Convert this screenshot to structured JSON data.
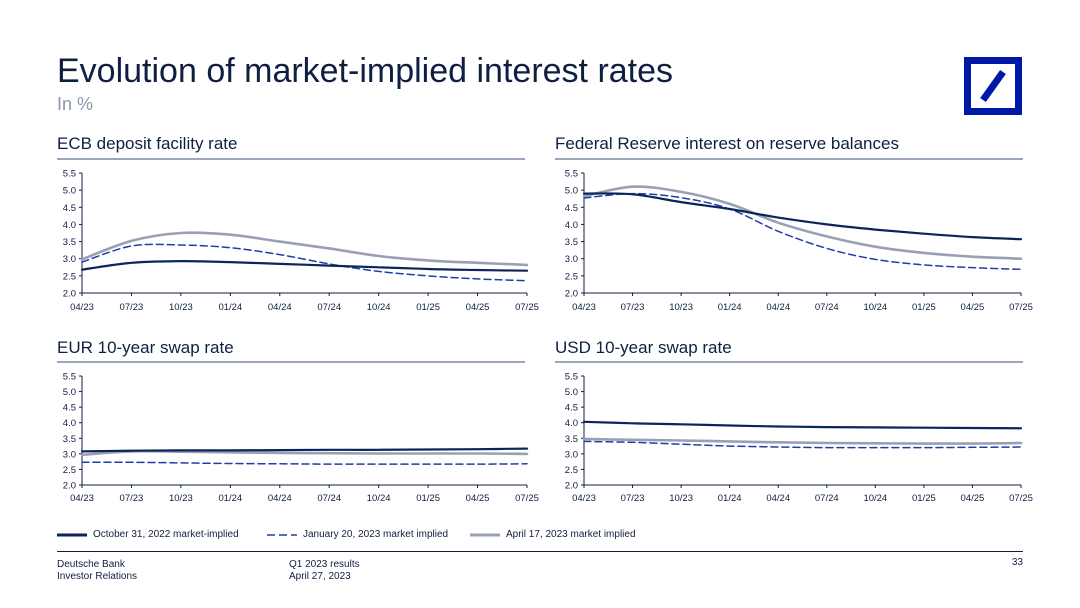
{
  "header": {
    "title": "Evolution of market-implied interest rates",
    "subtitle": "In %"
  },
  "colors": {
    "oct31": "#0b2559",
    "jan20": "#1f3fa6",
    "apr17": "#98a1b3",
    "logo": "#0018a8",
    "rule": "#9aa6bd"
  },
  "legend": [
    {
      "label": "October 31, 2022 market-implied",
      "style": "solid-dark"
    },
    {
      "label": "January 20, 2023 market implied",
      "style": "dashed-blue"
    },
    {
      "label": "April 17, 2023 market implied",
      "style": "solid-grey"
    }
  ],
  "chart_data": [
    {
      "type": "line",
      "title": "ECB deposit facility rate",
      "x": [
        "04/23",
        "07/23",
        "10/23",
        "01/24",
        "04/24",
        "07/24",
        "10/24",
        "01/25",
        "04/25",
        "07/25"
      ],
      "ylim": [
        2.0,
        5.5
      ],
      "yticks": [
        "2.0",
        "2.5",
        "3.0",
        "3.5",
        "4.0",
        "4.5",
        "5.0",
        "5.5"
      ],
      "series": [
        {
          "name": "October 31, 2022 market-implied",
          "values": [
            2.68,
            2.88,
            2.93,
            2.9,
            2.85,
            2.8,
            2.75,
            2.7,
            2.67,
            2.65
          ]
        },
        {
          "name": "January 20, 2023 market implied",
          "values": [
            2.9,
            3.37,
            3.4,
            3.32,
            3.12,
            2.85,
            2.63,
            2.5,
            2.41,
            2.36
          ]
        },
        {
          "name": "April 17, 2023 market implied",
          "values": [
            2.98,
            3.52,
            3.75,
            3.7,
            3.5,
            3.3,
            3.08,
            2.95,
            2.88,
            2.82
          ]
        }
      ]
    },
    {
      "type": "line",
      "title": "Federal Reserve interest on reserve balances",
      "x": [
        "04/23",
        "07/23",
        "10/23",
        "01/24",
        "04/24",
        "07/24",
        "10/24",
        "01/25",
        "04/25",
        "07/25"
      ],
      "ylim": [
        2.0,
        5.5
      ],
      "yticks": [
        "2.0",
        "2.5",
        "3.0",
        "3.5",
        "4.0",
        "4.5",
        "5.0",
        "5.5"
      ],
      "series": [
        {
          "name": "October 31, 2022 market-implied",
          "values": [
            4.9,
            4.88,
            4.65,
            4.45,
            4.2,
            4.0,
            3.85,
            3.73,
            3.63,
            3.57
          ]
        },
        {
          "name": "January 20, 2023 market implied",
          "values": [
            4.77,
            4.9,
            4.78,
            4.45,
            3.8,
            3.3,
            2.98,
            2.82,
            2.74,
            2.69
          ]
        },
        {
          "name": "April 17, 2023 market implied",
          "values": [
            4.82,
            5.1,
            4.95,
            4.6,
            4.05,
            3.65,
            3.35,
            3.17,
            3.06,
            3.0
          ]
        }
      ]
    },
    {
      "type": "line",
      "title": "EUR 10-year swap rate",
      "x": [
        "04/23",
        "07/23",
        "10/23",
        "01/24",
        "04/24",
        "07/24",
        "10/24",
        "01/25",
        "04/25",
        "07/25"
      ],
      "ylim": [
        2.0,
        5.5
      ],
      "yticks": [
        "2.0",
        "2.5",
        "3.0",
        "3.5",
        "4.0",
        "4.5",
        "5.0",
        "5.5"
      ],
      "series": [
        {
          "name": "October 31, 2022 market-implied",
          "values": [
            3.08,
            3.1,
            3.11,
            3.11,
            3.12,
            3.13,
            3.13,
            3.14,
            3.15,
            3.17
          ]
        },
        {
          "name": "January 20, 2023 market implied",
          "values": [
            2.73,
            2.73,
            2.71,
            2.69,
            2.68,
            2.67,
            2.67,
            2.67,
            2.67,
            2.68
          ]
        },
        {
          "name": "April 17, 2023 market implied",
          "values": [
            2.97,
            3.08,
            3.07,
            3.05,
            3.03,
            3.02,
            3.01,
            3.01,
            3.01,
            3.0
          ]
        }
      ]
    },
    {
      "type": "line",
      "title": "USD 10-year swap rate",
      "x": [
        "04/23",
        "07/23",
        "10/23",
        "01/24",
        "04/24",
        "07/24",
        "10/24",
        "01/25",
        "04/25",
        "07/25"
      ],
      "ylim": [
        2.0,
        5.5
      ],
      "yticks": [
        "2.0",
        "2.5",
        "3.0",
        "3.5",
        "4.0",
        "4.5",
        "5.0",
        "5.5"
      ],
      "series": [
        {
          "name": "October 31, 2022 market-implied",
          "values": [
            4.03,
            3.98,
            3.95,
            3.91,
            3.88,
            3.86,
            3.85,
            3.84,
            3.83,
            3.82
          ]
        },
        {
          "name": "January 20, 2023 market implied",
          "values": [
            3.4,
            3.37,
            3.31,
            3.25,
            3.22,
            3.2,
            3.2,
            3.2,
            3.21,
            3.22
          ]
        },
        {
          "name": "April 17, 2023 market implied",
          "values": [
            3.48,
            3.45,
            3.43,
            3.4,
            3.37,
            3.35,
            3.34,
            3.33,
            3.33,
            3.35
          ]
        }
      ]
    }
  ],
  "footer": {
    "company": "Deutsche Bank",
    "department": "Investor Relations",
    "report": "Q1 2023 results",
    "date": "April 27, 2023",
    "page_number": "33"
  }
}
